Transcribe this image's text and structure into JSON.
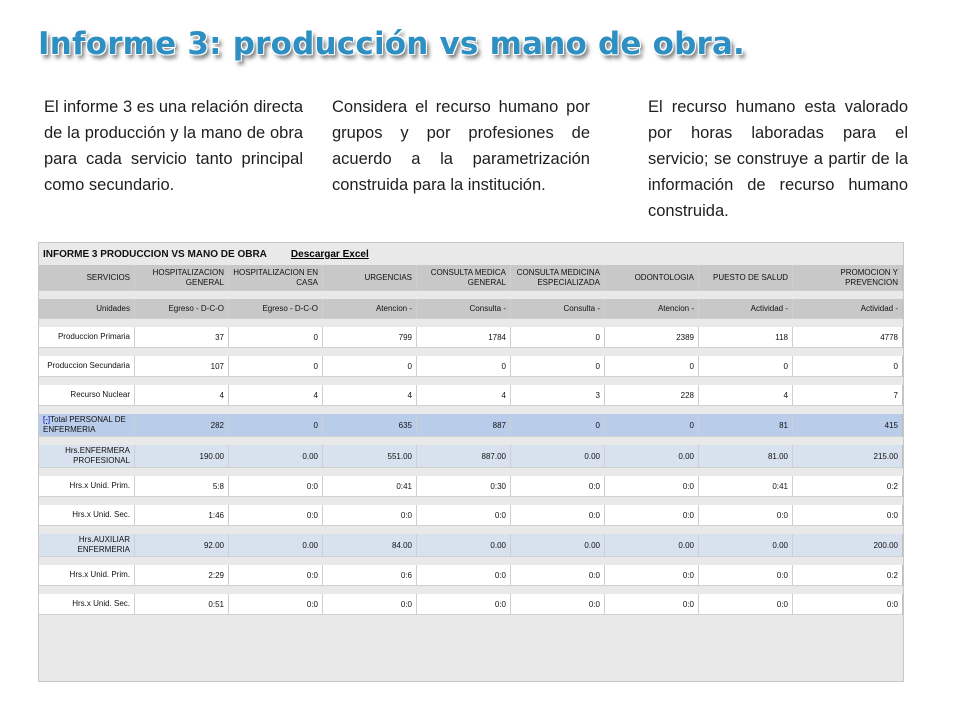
{
  "slide": {
    "title": "Informe 3: producción vs mano de obra.",
    "paragraphs": [
      "El informe 3 es una relación directa de la producción y la mano de obra para cada servicio tanto principal como secundario.",
      "Considera el recurso humano por grupos y por profesiones de acuerdo a la parametrización construida para la institución.",
      "El recurso humano esta valorado por horas laboradas para el servicio; se construye a partir de la información de recurso humano construida."
    ]
  },
  "report": {
    "title": "INFORME 3 PRODUCCION VS MANO DE OBRA",
    "download_label": "Descargar Excel",
    "columns": [
      "SERVICIOS",
      "HOSPITALIZACION GENERAL",
      "HOSPITALIZACION EN CASA",
      "URGENCIAS",
      "CONSULTA MEDICA GENERAL",
      "CONSULTA MEDICINA ESPECIALIZADA",
      "ODONTOLOGIA",
      "PUESTO DE SALUD",
      "PROMOCION Y PREVENCION"
    ],
    "units_row": [
      "Unidades",
      "Egreso - D-C-O",
      "Egreso - D-C-O",
      "Atencion -",
      "Consulta -",
      "Consulta -",
      "Atencion -",
      "Actividad -",
      "Actividad -"
    ],
    "rows": [
      {
        "toggle": "",
        "label": "Produccion Primaria",
        "values": [
          "37",
          "0",
          "799",
          "1784",
          "0",
          "2389",
          "118",
          "4778"
        ]
      },
      {
        "toggle": "",
        "label": "Produccion Secundaria",
        "values": [
          "107",
          "0",
          "0",
          "0",
          "0",
          "0",
          "0",
          "0"
        ]
      },
      {
        "toggle": "",
        "label": "Recurso Nuclear",
        "values": [
          "4",
          "4",
          "4",
          "4",
          "3",
          "228",
          "4",
          "7"
        ]
      },
      {
        "toggle": "[-]",
        "label": "Total PERSONAL DE ENFERMERIA",
        "values": [
          "282",
          "0",
          "635",
          "887",
          "0",
          "0",
          "81",
          "415"
        ]
      },
      {
        "toggle": "",
        "label": "Hrs.ENFERMERA PROFESIONAL",
        "values": [
          "190.00",
          "0.00",
          "551.00",
          "887.00",
          "0.00",
          "0.00",
          "81.00",
          "215.00"
        ]
      },
      {
        "toggle": "",
        "label": "Hrs.x Unid. Prim.",
        "values": [
          "5:8",
          "0:0",
          "0:41",
          "0:30",
          "0:0",
          "0:0",
          "0:41",
          "0:2"
        ]
      },
      {
        "toggle": "",
        "label": "Hrs.x Unid. Sec.",
        "values": [
          "1:46",
          "0:0",
          "0:0",
          "0:0",
          "0:0",
          "0:0",
          "0:0",
          "0:0"
        ]
      },
      {
        "toggle": "",
        "label": "Hrs.AUXILIAR ENFERMERIA",
        "values": [
          "92.00",
          "0.00",
          "84.00",
          "0.00",
          "0.00",
          "0.00",
          "0.00",
          "200.00"
        ]
      },
      {
        "toggle": "",
        "label": "Hrs.x Unid. Prim.",
        "values": [
          "2:29",
          "0:0",
          "0:6",
          "0:0",
          "0:0",
          "0:0",
          "0:0",
          "0:2"
        ]
      },
      {
        "toggle": "",
        "label": "Hrs.x Unid. Sec.",
        "values": [
          "0:51",
          "0:0",
          "0:0",
          "0:0",
          "0:0",
          "0:0",
          "0:0",
          "0:0"
        ]
      }
    ]
  }
}
